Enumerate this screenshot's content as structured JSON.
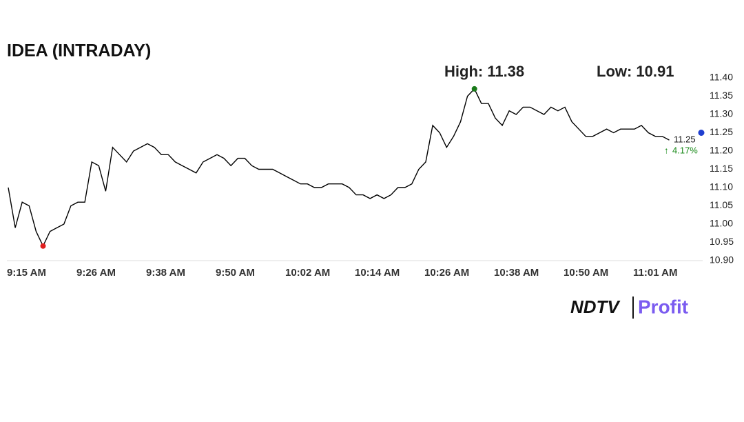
{
  "chart_data": {
    "type": "line",
    "title": "IDEA (INTRADAY)",
    "high_label": "High: 11.38",
    "low_label": "Low: 10.91",
    "last_value": 11.25,
    "change_label": "4.17%",
    "brand": "NDTV",
    "brand_sub": "Profit",
    "categories": [
      "9:15 AM",
      null,
      null,
      null,
      null,
      null,
      null,
      null,
      null,
      null,
      "9:26 AM",
      null,
      null,
      null,
      null,
      null,
      null,
      null,
      null,
      null,
      "9:38 AM",
      null,
      null,
      null,
      null,
      null,
      null,
      null,
      null,
      null,
      "9:50 AM",
      null,
      null,
      null,
      null,
      null,
      null,
      null,
      null,
      null,
      "10:02 AM",
      null,
      null,
      null,
      null,
      null,
      null,
      null,
      null,
      null,
      "10:14 AM",
      null,
      null,
      null,
      null,
      null,
      null,
      null,
      null,
      null,
      "10:26 AM",
      null,
      null,
      null,
      null,
      null,
      null,
      null,
      null,
      null,
      "10:38 AM",
      null,
      null,
      null,
      null,
      null,
      null,
      null,
      null,
      null,
      "10:50 AM",
      null,
      null,
      null,
      null,
      null,
      null,
      null,
      null,
      null,
      "11:01 AM",
      null,
      null,
      null,
      null,
      null
    ],
    "series": [
      {
        "name": "IDEA",
        "color": "#000000",
        "values": [
          11.1,
          10.99,
          11.06,
          11.05,
          10.98,
          10.94,
          10.98,
          10.99,
          11.0,
          11.05,
          11.06,
          11.06,
          11.17,
          11.16,
          11.09,
          11.21,
          11.19,
          11.17,
          11.2,
          11.21,
          11.22,
          11.21,
          11.19,
          11.19,
          11.17,
          11.16,
          11.15,
          11.14,
          11.17,
          11.18,
          11.19,
          11.18,
          11.16,
          11.18,
          11.18,
          11.16,
          11.15,
          11.15,
          11.15,
          11.14,
          11.13,
          11.12,
          11.11,
          11.11,
          11.1,
          11.1,
          11.11,
          11.11,
          11.11,
          11.1,
          11.08,
          11.08,
          11.07,
          11.08,
          11.07,
          11.08,
          11.1,
          11.1,
          11.11,
          11.15,
          11.17,
          11.27,
          11.25,
          11.21,
          11.24,
          11.28,
          11.35,
          11.37,
          11.33,
          11.33,
          11.29,
          11.27,
          11.31,
          11.3,
          11.32,
          11.32,
          11.31,
          11.3,
          11.32,
          11.31,
          11.32,
          11.28,
          11.26,
          11.24,
          11.24,
          11.25,
          11.26,
          11.25,
          11.26,
          11.26,
          11.26,
          11.27,
          11.25,
          11.24,
          11.24,
          11.23
        ]
      }
    ],
    "high_color": "#1a7a1a",
    "low_color": "#e02020",
    "last_color": "#1f3fd0",
    "change_color": "#1a8a1a",
    "ylim": [
      10.9,
      11.4
    ],
    "yticks": [
      {
        "value": 10.9,
        "label": "10.90"
      },
      10.95,
      {
        "value": 11.0,
        "label": "11.00"
      },
      11.05,
      {
        "value": 11.1,
        "label": "11.10"
      },
      11.15,
      {
        "value": 11.2,
        "label": "11.20"
      },
      11.25,
      {
        "value": 11.3,
        "label": "11.30"
      },
      11.35,
      {
        "value": 11.4,
        "label": "11.40"
      }
    ],
    "grid": false
  }
}
